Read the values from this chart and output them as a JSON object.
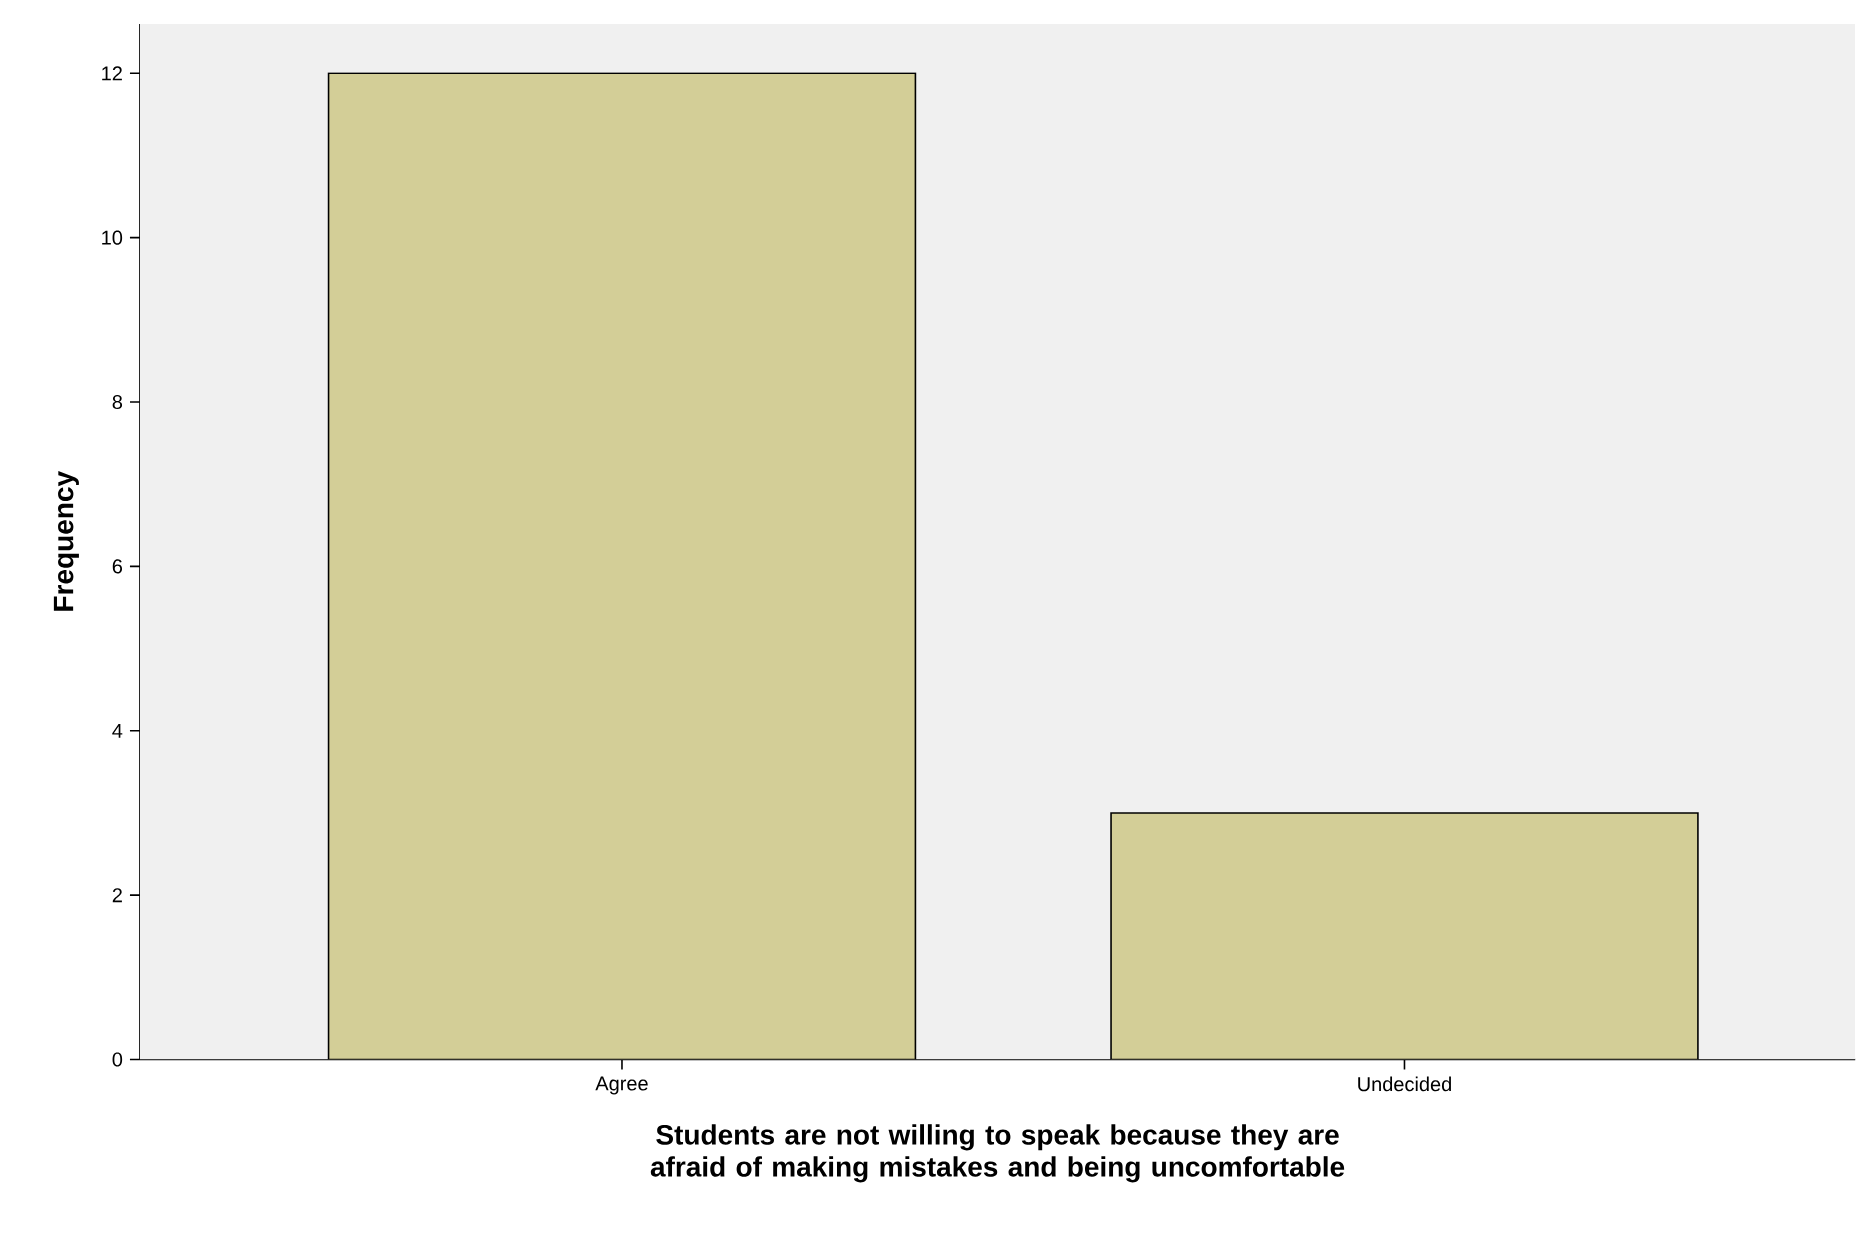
{
  "chart_data": {
    "type": "bar",
    "xlabel": "Students are not willing to speak because they are afraid of making mistakes and being uncomfortable",
    "ylabel": "Frequency",
    "categories": [
      "Agree",
      "Undecided"
    ],
    "values": [
      12,
      3
    ],
    "color": "#d3ce97",
    "ylim": [
      0,
      12.6
    ],
    "yticks": [
      0,
      2,
      4,
      6,
      8,
      10,
      12
    ],
    "grid": false
  }
}
